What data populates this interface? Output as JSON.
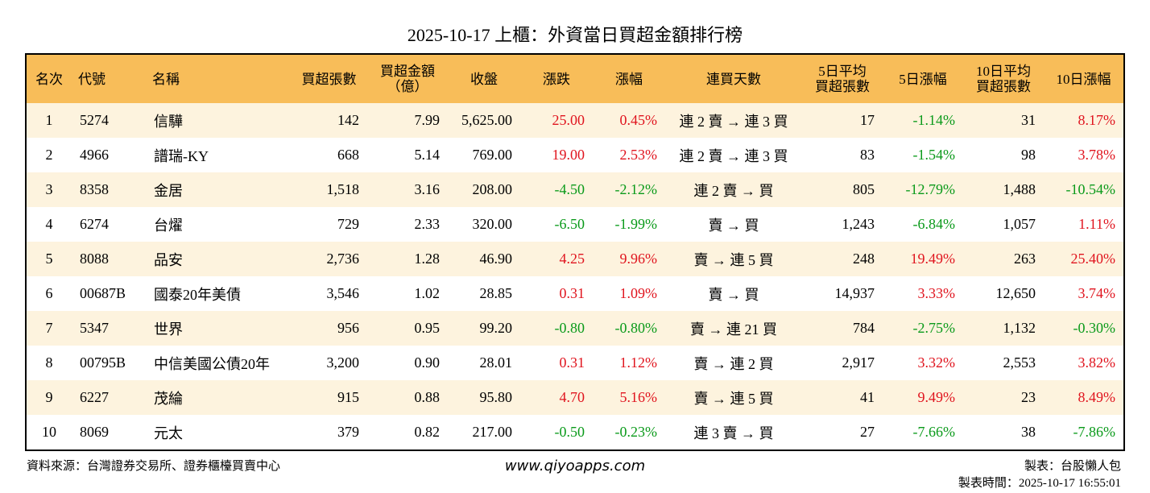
{
  "title": "2025-10-17 上櫃：外資當日買超金額排行榜",
  "table": {
    "header": [
      "名次",
      "代號",
      "名稱",
      "買超張數",
      "買超金額\n（億）",
      "收盤",
      "漲跌",
      "漲幅",
      "連買天數",
      "5日平均\n買超張數",
      "5日漲幅",
      "10日平均\n買超張數",
      "10日漲幅"
    ],
    "rows": [
      [
        "1",
        "5274",
        "信驊",
        "142",
        "7.99",
        "5,625.00",
        "25.00",
        "0.45%",
        "連 2 賣 → 連 3 買",
        "17",
        "-1.14%",
        "31",
        "8.17%"
      ],
      [
        "2",
        "4966",
        "譜瑞-KY",
        "668",
        "5.14",
        "769.00",
        "19.00",
        "2.53%",
        "連 2 賣 → 連 3 買",
        "83",
        "-1.54%",
        "98",
        "3.78%"
      ],
      [
        "3",
        "8358",
        "金居",
        "1,518",
        "3.16",
        "208.00",
        "-4.50",
        "-2.12%",
        "連 2 賣 → 買",
        "805",
        "-12.79%",
        "1,488",
        "-10.54%"
      ],
      [
        "4",
        "6274",
        "台燿",
        "729",
        "2.33",
        "320.00",
        "-6.50",
        "-1.99%",
        "賣 → 買",
        "1,243",
        "-6.84%",
        "1,057",
        "1.11%"
      ],
      [
        "5",
        "8088",
        "品安",
        "2,736",
        "1.28",
        "46.90",
        "4.25",
        "9.96%",
        "賣 → 連 5 買",
        "248",
        "19.49%",
        "263",
        "25.40%"
      ],
      [
        "6",
        "00687B",
        "國泰20年美債",
        "3,546",
        "1.02",
        "28.85",
        "0.31",
        "1.09%",
        "賣 → 買",
        "14,937",
        "3.33%",
        "12,650",
        "3.74%"
      ],
      [
        "7",
        "5347",
        "世界",
        "956",
        "0.95",
        "99.20",
        "-0.80",
        "-0.80%",
        "賣 → 連 21 買",
        "784",
        "-2.75%",
        "1,132",
        "-0.30%"
      ],
      [
        "8",
        "00795B",
        "中信美國公債20年",
        "3,200",
        "0.90",
        "28.01",
        "0.31",
        "1.12%",
        "賣 → 連 2 買",
        "2,917",
        "3.32%",
        "2,553",
        "3.82%"
      ],
      [
        "9",
        "6227",
        "茂綸",
        "915",
        "0.88",
        "95.80",
        "4.70",
        "5.16%",
        "賣 → 連 5 買",
        "41",
        "9.49%",
        "23",
        "8.49%"
      ],
      [
        "10",
        "8069",
        "元太",
        "379",
        "0.82",
        "217.00",
        "-0.50",
        "-0.23%",
        "連 3 賣 → 買",
        "27",
        "-7.66%",
        "38",
        "-7.86%"
      ]
    ]
  },
  "footer": {
    "source": "資料來源：台灣證券交易所、證券櫃檯買賣中心",
    "website": "www.qiyoapps.com",
    "author": "製表：台股懶人包",
    "time": "製表時間：2025-10-17 16:55:01"
  }
}
